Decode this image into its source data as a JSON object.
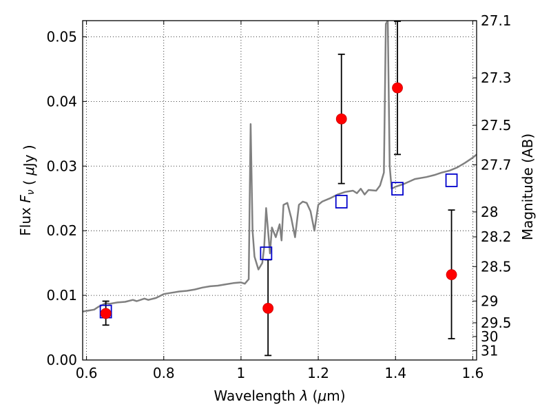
{
  "chart_data": {
    "type": "line",
    "xlabel": "Wavelength λ (μm)",
    "ylabel": "Flux F_ν ( μJy )",
    "ylabel_right": "Magnitude (AB)",
    "xlim": [
      0.59,
      1.61
    ],
    "ylim": [
      0.0,
      0.0525
    ],
    "grid": true,
    "x_ticks": [
      "0.6",
      "0.8",
      "1",
      "1.2",
      "1.4",
      "1.6"
    ],
    "x_tick_values": [
      0.6,
      0.8,
      1.0,
      1.2,
      1.4,
      1.6
    ],
    "y_ticks": [
      "0.00",
      "0.01",
      "0.02",
      "0.03",
      "0.04",
      "0.05"
    ],
    "y_tick_values": [
      0.0,
      0.01,
      0.02,
      0.03,
      0.04,
      0.05
    ],
    "right_ticks": [
      "27.1",
      "27.3",
      "27.5",
      "27.7",
      "28",
      "28.2",
      "28.5",
      "29",
      "29.5",
      "30",
      "31"
    ],
    "right_tick_values": [
      27.1,
      27.3,
      27.5,
      27.7,
      28.0,
      28.2,
      28.5,
      29.0,
      29.5,
      30.0,
      31.0
    ],
    "series": [
      {
        "kind": "line",
        "color": "#808080",
        "x": [
          0.59,
          0.62,
          0.63,
          0.64,
          0.65,
          0.66,
          0.68,
          0.7,
          0.72,
          0.73,
          0.75,
          0.76,
          0.78,
          0.8,
          0.82,
          0.84,
          0.86,
          0.88,
          0.9,
          0.92,
          0.94,
          0.96,
          0.98,
          1.0,
          1.01,
          1.02,
          1.025,
          1.03,
          1.035,
          1.045,
          1.055,
          1.06,
          1.065,
          1.07,
          1.075,
          1.08,
          1.09,
          1.1,
          1.105,
          1.11,
          1.12,
          1.13,
          1.14,
          1.15,
          1.16,
          1.17,
          1.18,
          1.19,
          1.2,
          1.21,
          1.23,
          1.25,
          1.27,
          1.29,
          1.3,
          1.31,
          1.32,
          1.33,
          1.35,
          1.36,
          1.37,
          1.375,
          1.38,
          1.385,
          1.39,
          1.4,
          1.42,
          1.45,
          1.48,
          1.5,
          1.52,
          1.54,
          1.56,
          1.58,
          1.6,
          1.61
        ],
        "y": [
          0.0075,
          0.0078,
          0.0082,
          0.0085,
          0.0088,
          0.0087,
          0.0089,
          0.009,
          0.0093,
          0.0091,
          0.0095,
          0.0093,
          0.0096,
          0.0102,
          0.0104,
          0.0106,
          0.0107,
          0.0109,
          0.0112,
          0.0114,
          0.0115,
          0.0117,
          0.0119,
          0.012,
          0.0118,
          0.0125,
          0.0365,
          0.02,
          0.016,
          0.014,
          0.015,
          0.0175,
          0.0235,
          0.02,
          0.0165,
          0.0205,
          0.019,
          0.021,
          0.0185,
          0.024,
          0.0243,
          0.022,
          0.019,
          0.024,
          0.0245,
          0.0243,
          0.023,
          0.02,
          0.024,
          0.0245,
          0.025,
          0.0256,
          0.026,
          0.0262,
          0.0258,
          0.0265,
          0.0256,
          0.0263,
          0.0262,
          0.027,
          0.029,
          0.052,
          0.0525,
          0.03,
          0.0265,
          0.0268,
          0.0272,
          0.028,
          0.0283,
          0.0286,
          0.029,
          0.0293,
          0.0298,
          0.0305,
          0.0313,
          0.0318
        ]
      },
      {
        "kind": "scatter",
        "marker": "open-square",
        "color": "#0000cc",
        "x": [
          0.65,
          1.065,
          1.26,
          1.405,
          1.545
        ],
        "y": [
          0.0075,
          0.0165,
          0.0245,
          0.0265,
          0.0278
        ]
      },
      {
        "kind": "scatter",
        "marker": "filled-circle",
        "color": "#ff0000",
        "x": [
          0.65,
          1.07,
          1.26,
          1.405,
          1.545
        ],
        "y": [
          0.0072,
          0.008,
          0.0373,
          0.0421,
          0.0132
        ],
        "yerr_low": [
          0.0054,
          0.0007,
          0.0273,
          0.0318,
          0.0033
        ],
        "yerr_high": [
          0.0091,
          0.0155,
          0.0473,
          0.0524,
          0.0232
        ]
      }
    ]
  }
}
